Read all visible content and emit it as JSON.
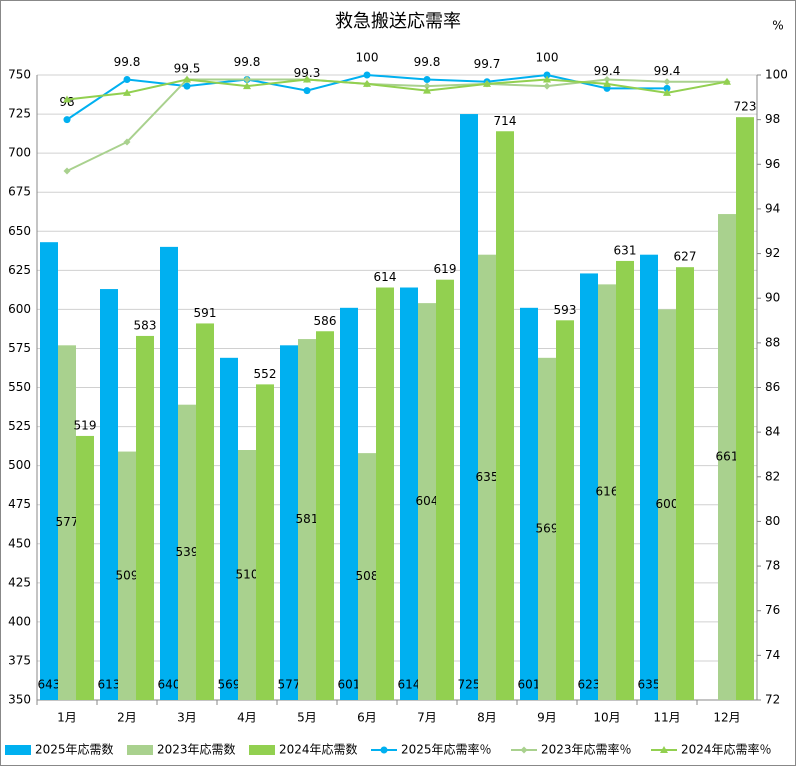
{
  "chart_data": {
    "type": "bar_line",
    "title": "救急搬送応需率",
    "y2label": "%",
    "categories": [
      "1月",
      "2月",
      "3月",
      "4月",
      "5月",
      "6月",
      "7月",
      "8月",
      "9月",
      "10月",
      "11月",
      "12月"
    ],
    "ylim": [
      350,
      750
    ],
    "yticks": [
      350,
      375,
      400,
      425,
      450,
      475,
      500,
      525,
      550,
      575,
      600,
      625,
      650,
      675,
      700,
      725,
      750
    ],
    "y2lim": [
      72,
      100
    ],
    "y2ticks": [
      72,
      74,
      76,
      78,
      80,
      82,
      84,
      86,
      88,
      90,
      92,
      94,
      96,
      98,
      100
    ],
    "grid": true,
    "legend": "bottom",
    "series": [
      {
        "name": "2025年応需数",
        "kind": "bar",
        "color": "#00b0f0",
        "label_pos": "base",
        "values": [
          643,
          613,
          640,
          569,
          577,
          601,
          614,
          725,
          601,
          623,
          635,
          null
        ]
      },
      {
        "name": "2023年応需数",
        "kind": "bar",
        "color": "#a9d18e",
        "label_pos": "center",
        "values": [
          577,
          509,
          539,
          510,
          581,
          508,
          604,
          635,
          569,
          616,
          600,
          661
        ]
      },
      {
        "name": "2024年応需数",
        "kind": "bar",
        "color": "#92d050",
        "label_pos": "top",
        "values": [
          519,
          583,
          591,
          552,
          586,
          614,
          619,
          714,
          593,
          631,
          627,
          723
        ]
      },
      {
        "name": "2025年応需率％",
        "kind": "line",
        "axis": "y2",
        "color": "#00b0f0",
        "marker": "circle",
        "labels": true,
        "values": [
          98,
          99.8,
          99.5,
          99.8,
          99.3,
          100,
          99.8,
          99.7,
          100,
          99.4,
          99.4,
          null
        ]
      },
      {
        "name": "2023年応需率％",
        "kind": "line",
        "axis": "y2",
        "color": "#a9d18e",
        "marker": "diamond",
        "labels": false,
        "values": [
          95.7,
          97,
          99.8,
          99.8,
          99.8,
          99.6,
          99.5,
          99.6,
          99.5,
          99.8,
          99.7,
          99.7
        ]
      },
      {
        "name": "2024年応需率％",
        "kind": "line",
        "axis": "y2",
        "color": "#92d050",
        "marker": "triangle",
        "labels": false,
        "values": [
          98.9,
          99.2,
          99.8,
          99.5,
          99.8,
          99.6,
          99.3,
          99.6,
          99.8,
          99.6,
          99.2,
          99.7
        ]
      }
    ]
  }
}
